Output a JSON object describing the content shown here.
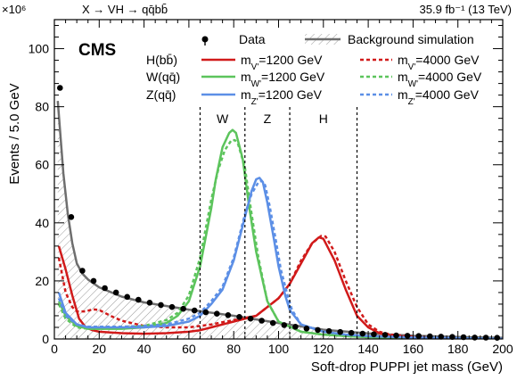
{
  "chart_data": {
    "type": "line",
    "header_left": "X → VH → qq̄bb̄",
    "header_right": "35.9 fb⁻¹ (13 TeV)",
    "experiment": "CMS",
    "xlabel": "Soft-drop PUPPI jet mass (GeV)",
    "ylabel": "Events / 5.0 GeV",
    "y_multiplier": "×10⁶",
    "xlim": [
      0,
      200
    ],
    "ylim": [
      0,
      110
    ],
    "xticks": [
      0,
      20,
      40,
      60,
      80,
      100,
      120,
      140,
      160,
      180,
      200
    ],
    "yticks": [
      0,
      20,
      40,
      60,
      80,
      100
    ],
    "grid": false,
    "legend": {
      "placement": "top",
      "row_labels": [
        "H(bb̄)",
        "W(qq̄)",
        "Z(qq̄)"
      ],
      "data_label": "Data",
      "background_label": "Background simulation",
      "solid_labels": [
        "m_V'=1200 GeV",
        "m_W'=1200 GeV",
        "m_Z'=1200 GeV"
      ],
      "dashed_labels": [
        "m_V'=4000 GeV",
        "m_W'=4000 GeV",
        "m_Z'=4000 GeV"
      ]
    },
    "mass_windows": {
      "boundaries": [
        65,
        85,
        105,
        135
      ],
      "labels": [
        {
          "text": "W",
          "x": 75
        },
        {
          "text": "Z",
          "x": 95
        },
        {
          "text": "H",
          "x": 120
        }
      ]
    },
    "colors": {
      "data": "#000000",
      "background": "#6e6e6e",
      "background_hatch": "#9a9a9a",
      "higgs": "#d11a1a",
      "w": "#5cc45c",
      "z": "#5c8fe6"
    },
    "data": {
      "x": [
        2.5,
        7.5,
        12.5,
        17.5,
        22.5,
        27.5,
        32.5,
        37.5,
        42.5,
        47.5,
        52.5,
        57.5,
        62.5,
        67.5,
        72.5,
        77.5,
        82.5,
        87.5,
        92.5,
        97.5,
        102.5,
        107.5,
        112.5,
        117.5,
        122.5,
        127.5,
        132.5,
        137.5,
        142.5,
        147.5,
        152.5,
        157.5,
        162.5,
        167.5,
        172.5,
        177.5,
        182.5,
        187.5,
        192.5,
        197.5
      ],
      "y": [
        86.5,
        42,
        23.5,
        20,
        17.5,
        16,
        14.5,
        13.5,
        12.5,
        11.7,
        11,
        10.4,
        9.8,
        9.2,
        8.7,
        8.2,
        7.6,
        7.0,
        6.3,
        5.5,
        4.8,
        4.2,
        3.6,
        3.1,
        2.7,
        2.4,
        2.1,
        1.8,
        1.6,
        1.4,
        1.2,
        1.1,
        1.0,
        0.9,
        0.8,
        0.7,
        0.6,
        0.5,
        0.45,
        0.4
      ]
    },
    "series": [
      {
        "name": "Background simulation",
        "style": "solid",
        "x": [
          1.5,
          4,
          6,
          8,
          10,
          12.5,
          15,
          20,
          30,
          40,
          60,
          80,
          100,
          120,
          140,
          160,
          180,
          200
        ],
        "y": [
          82,
          57,
          43,
          33,
          26,
          22.5,
          20.5,
          17.8,
          14.6,
          12.6,
          10.1,
          8.0,
          5.5,
          3.2,
          1.9,
          1.1,
          0.7,
          0.4
        ]
      },
      {
        "name": "m_V'=1200 GeV",
        "style": "solid",
        "x": [
          2,
          5,
          8,
          11,
          14,
          17,
          20,
          30,
          40,
          50,
          60,
          65,
          70,
          80,
          90,
          100,
          105,
          110,
          115,
          118,
          120,
          125,
          130,
          135,
          140,
          145,
          150,
          160,
          170,
          180,
          190,
          200
        ],
        "y": [
          32,
          24,
          15,
          7,
          4,
          3,
          2.5,
          2,
          1.8,
          2,
          2.5,
          3,
          4,
          6,
          8,
          14,
          19,
          26,
          33,
          35,
          34.5,
          27,
          17,
          8,
          4,
          2,
          1.2,
          0.6,
          0.3,
          0.2,
          0.1,
          0.1
        ]
      },
      {
        "name": "m_V'=4000 GeV",
        "style": "dashed",
        "x": [
          2,
          5,
          8,
          10,
          14,
          17,
          20,
          25,
          30,
          40,
          50,
          60,
          70,
          80,
          90,
          100,
          105,
          110,
          115,
          119,
          121,
          125,
          130,
          135,
          140,
          145,
          150,
          160,
          170,
          180,
          200
        ],
        "y": [
          28,
          16,
          11,
          9.5,
          9.5,
          10.2,
          10,
          8,
          6.3,
          4.5,
          4,
          4,
          5,
          6.5,
          8,
          14,
          19,
          27,
          33,
          35.5,
          35.3,
          30,
          20,
          11,
          5,
          2.5,
          1.5,
          0.8,
          0.4,
          0.2,
          0.1
        ]
      },
      {
        "name": "m_W'=1200 GeV",
        "style": "solid",
        "x": [
          2,
          5,
          10,
          15,
          20,
          30,
          40,
          50,
          55,
          60,
          65,
          70,
          72,
          75,
          78,
          79.5,
          81,
          84,
          87,
          90,
          95,
          100,
          110,
          120,
          130,
          140,
          160,
          200
        ],
        "y": [
          13,
          8,
          4.5,
          3.5,
          3.5,
          3.5,
          4,
          5.5,
          8,
          13,
          25,
          45,
          55,
          66,
          71,
          72,
          71,
          62,
          45,
          30,
          13,
          6,
          2.5,
          1.5,
          1,
          0.6,
          0.3,
          0.1
        ]
      },
      {
        "name": "m_W'=4000 GeV",
        "style": "dashed",
        "x": [
          2,
          5,
          10,
          15,
          20,
          30,
          40,
          50,
          55,
          60,
          65,
          70,
          73,
          76,
          79,
          80.5,
          82,
          85,
          88,
          91,
          95,
          100,
          110,
          120,
          130,
          140,
          160,
          200
        ],
        "y": [
          12,
          7,
          4,
          3.5,
          3.5,
          3.8,
          4.5,
          6.5,
          9,
          15,
          28,
          48,
          58,
          65,
          68.5,
          68.5,
          67,
          59,
          43,
          28,
          13,
          6,
          2.5,
          1.5,
          1,
          0.6,
          0.3,
          0.1
        ]
      },
      {
        "name": "m_Z'=1200 GeV",
        "style": "solid",
        "x": [
          2,
          5,
          10,
          15,
          20,
          30,
          40,
          50,
          60,
          65,
          70,
          75,
          80,
          85,
          88,
          90,
          91.5,
          93,
          95,
          98,
          100,
          103,
          105,
          110,
          120,
          130,
          140,
          160,
          200
        ],
        "y": [
          16,
          9,
          5,
          4,
          4,
          4,
          4,
          4.5,
          6,
          8,
          12,
          17,
          27,
          42,
          51,
          55,
          55.5,
          54,
          47,
          34,
          25,
          15,
          10,
          5,
          2.5,
          1.5,
          1,
          0.5,
          0.1
        ]
      },
      {
        "name": "m_Z'=4000 GeV",
        "style": "dashed",
        "x": [
          2,
          5,
          10,
          15,
          20,
          30,
          40,
          50,
          60,
          65,
          70,
          75,
          80,
          85,
          88,
          91,
          92.5,
          94,
          96,
          99,
          101,
          104,
          106,
          110,
          120,
          130,
          140,
          160,
          200
        ],
        "y": [
          14,
          8,
          5,
          4.2,
          4.2,
          4.2,
          4.5,
          5,
          7,
          9,
          13,
          18,
          28,
          43,
          50,
          54,
          54.5,
          53,
          46,
          33,
          24,
          15,
          10,
          5,
          2.5,
          1.5,
          1,
          0.5,
          0.1
        ]
      }
    ]
  }
}
